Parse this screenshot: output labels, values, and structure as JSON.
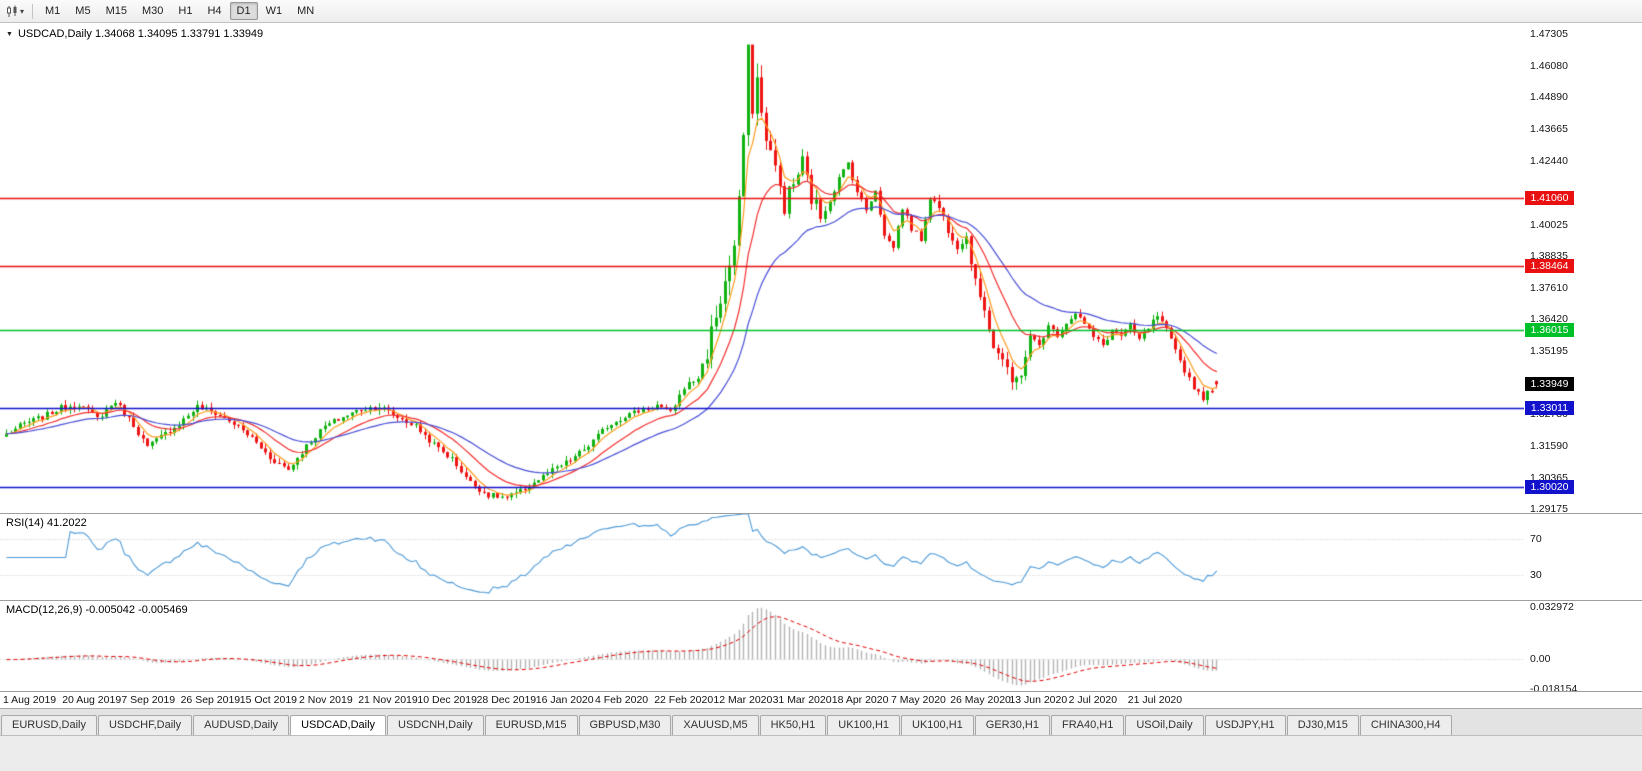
{
  "toolbar": {
    "timeframes": [
      "M1",
      "M5",
      "M15",
      "M30",
      "H1",
      "H4",
      "D1",
      "W1",
      "MN"
    ],
    "active_timeframe": "D1"
  },
  "chart": {
    "title": "USDCAD,Daily 1.34068 1.34095 1.33791 1.33949",
    "symbol": "USDCAD",
    "period": "Daily",
    "open": "1.34068",
    "high": "1.34095",
    "low": "1.33791",
    "close": "1.33949"
  },
  "price_scale": {
    "labels": [
      "1.47305",
      "1.46080",
      "1.44890",
      "1.43665",
      "1.42440",
      "1.40025",
      "1.38835",
      "1.37610",
      "1.36420",
      "1.35195",
      "1.32780",
      "1.31590",
      "1.30365",
      "1.29175"
    ],
    "badges": [
      {
        "text": "1.41060",
        "price": 1.4106,
        "color": "#e81010"
      },
      {
        "text": "1.38464",
        "price": 1.38464,
        "color": "#e81010"
      },
      {
        "text": "1.36015",
        "price": 1.36015,
        "color": "#00c02a"
      },
      {
        "text": "1.33949",
        "price": 1.33949,
        "color": "#000000"
      },
      {
        "text": "1.33011",
        "price": 1.33011,
        "color": "#1212cc"
      },
      {
        "text": "1.30020",
        "price": 1.3002,
        "color": "#1212cc"
      }
    ]
  },
  "indicators": {
    "rsi": {
      "label": "RSI(14) 41.2022",
      "period": 14,
      "value": 41.2022,
      "levels": [
        {
          "text": "70",
          "value": 70
        },
        {
          "text": "30",
          "value": 30
        }
      ]
    },
    "macd": {
      "label": "MACD(12,26,9) -0.005042 -0.005469",
      "fast": 12,
      "slow": 26,
      "signal": 9,
      "value": -0.005042,
      "signal_value": -0.005469,
      "scale_labels": [
        {
          "text": "0.032972",
          "value": 0.032972
        },
        {
          "text": "0.00",
          "value": 0
        },
        {
          "text": "-0.018154",
          "value": -0.018154
        }
      ]
    }
  },
  "time_axis": {
    "labels": [
      "1 Aug 2019",
      "20 Aug 2019",
      "7 Sep 2019",
      "26 Sep 2019",
      "15 Oct 2019",
      "2 Nov 2019",
      "21 Nov 2019",
      "10 Dec 2019",
      "28 Dec 2019",
      "16 Jan 2020",
      "4 Feb 2020",
      "22 Feb 2020",
      "12 Mar 2020",
      "31 Mar 2020",
      "18 Apr 2020",
      "7 May 2020",
      "26 May 2020",
      "13 Jun 2020",
      "2 Jul 2020",
      "21 Jul 2020"
    ]
  },
  "tabs": {
    "active_index": 3,
    "items": [
      "EURUSD,Daily",
      "USDCHF,Daily",
      "AUDUSD,Daily",
      "USDCAD,Daily",
      "USDCNH,Daily",
      "EURUSD,M15",
      "GBPUSD,M30",
      "XAUUSD,M5",
      "HK50,H1",
      "UK100,H1",
      "UK100,H1",
      "GER30,H1",
      "FRA40,H1",
      "USOil,Daily",
      "USDJPY,H1",
      "DJ30,M15",
      "CHINA300,H4"
    ]
  },
  "chart_data": {
    "type": "candlestick",
    "symbol": "USDCAD",
    "timeframe": "Daily",
    "ylim": [
      1.2902,
      1.4772
    ],
    "num_candles": 267,
    "last_candle": {
      "open": 1.34068,
      "high": 1.34095,
      "low": 1.33791,
      "close": 1.33949
    },
    "candle_colors": {
      "up": "#12b212",
      "down": "#ee1515"
    },
    "moving_averages": [
      {
        "period": 5,
        "color": "#ff9c1e"
      },
      {
        "period": 14,
        "color": "#f43030"
      },
      {
        "period": 30,
        "color": "#4a50d8"
      }
    ],
    "h_lines": [
      {
        "price": 1.4106,
        "color": "#e81010"
      },
      {
        "price": 1.38464,
        "color": "#e81010"
      },
      {
        "price": 1.36015,
        "color": "#00c02a"
      },
      {
        "price": 1.33011,
        "color": "#1212cc"
      },
      {
        "price": 1.3002,
        "color": "#1212cc"
      }
    ],
    "rsi_range": [
      2,
      98
    ],
    "macd_range": [
      -0.0195,
      0.0355
    ],
    "price_path_anchors": [
      [
        0,
        1.3205
      ],
      [
        4,
        1.3245
      ],
      [
        8,
        1.327
      ],
      [
        12,
        1.3305
      ],
      [
        16,
        1.332
      ],
      [
        20,
        1.3265
      ],
      [
        24,
        1.333
      ],
      [
        28,
        1.324
      ],
      [
        31,
        1.3155
      ],
      [
        34,
        1.3195
      ],
      [
        38,
        1.3245
      ],
      [
        42,
        1.331
      ],
      [
        46,
        1.3285
      ],
      [
        50,
        1.3245
      ],
      [
        54,
        1.319
      ],
      [
        58,
        1.3115
      ],
      [
        62,
        1.307
      ],
      [
        66,
        1.316
      ],
      [
        70,
        1.3235
      ],
      [
        74,
        1.327
      ],
      [
        78,
        1.33
      ],
      [
        82,
        1.331
      ],
      [
        86,
        1.327
      ],
      [
        90,
        1.3235
      ],
      [
        94,
        1.3165
      ],
      [
        98,
        1.311
      ],
      [
        102,
        1.302
      ],
      [
        106,
        1.2972
      ],
      [
        110,
        1.2962
      ],
      [
        113,
        1.2985
      ],
      [
        116,
        1.302
      ],
      [
        120,
        1.3065
      ],
      [
        124,
        1.3105
      ],
      [
        128,
        1.316
      ],
      [
        132,
        1.3235
      ],
      [
        136,
        1.3275
      ],
      [
        140,
        1.33
      ],
      [
        143,
        1.3315
      ],
      [
        146,
        1.3285
      ],
      [
        149,
        1.3385
      ],
      [
        152,
        1.342
      ],
      [
        154,
        1.352
      ],
      [
        156,
        1.366
      ],
      [
        158,
        1.378
      ],
      [
        160,
        1.392
      ],
      [
        161,
        1.408
      ],
      [
        162,
        1.435
      ],
      [
        163,
        1.4655
      ],
      [
        164,
        1.446
      ],
      [
        165,
        1.456
      ],
      [
        166,
        1.442
      ],
      [
        167,
        1.435
      ],
      [
        169,
        1.421
      ],
      [
        171,
        1.408
      ],
      [
        173,
        1.416
      ],
      [
        175,
        1.424
      ],
      [
        177,
        1.411
      ],
      [
        179,
        1.403
      ],
      [
        181,
        1.41
      ],
      [
        183,
        1.418
      ],
      [
        185,
        1.424
      ],
      [
        187,
        1.413
      ],
      [
        189,
        1.406
      ],
      [
        191,
        1.414
      ],
      [
        193,
        1.396
      ],
      [
        195,
        1.392
      ],
      [
        197,
        1.407
      ],
      [
        199,
        1.399
      ],
      [
        201,
        1.395
      ],
      [
        203,
        1.411
      ],
      [
        205,
        1.407
      ],
      [
        207,
        1.399
      ],
      [
        209,
        1.393
      ],
      [
        211,
        1.396
      ],
      [
        213,
        1.378
      ],
      [
        215,
        1.369
      ],
      [
        217,
        1.354
      ],
      [
        219,
        1.349
      ],
      [
        221,
        1.3395
      ],
      [
        223,
        1.344
      ],
      [
        225,
        1.3575
      ],
      [
        227,
        1.3545
      ],
      [
        229,
        1.3615
      ],
      [
        231,
        1.3585
      ],
      [
        233,
        1.363
      ],
      [
        235,
        1.367
      ],
      [
        237,
        1.3625
      ],
      [
        239,
        1.3575
      ],
      [
        241,
        1.3545
      ],
      [
        243,
        1.36
      ],
      [
        245,
        1.358
      ],
      [
        247,
        1.3615
      ],
      [
        249,
        1.3565
      ],
      [
        251,
        1.361
      ],
      [
        253,
        1.3655
      ],
      [
        255,
        1.36
      ],
      [
        257,
        1.352
      ],
      [
        259,
        1.345
      ],
      [
        261,
        1.3385
      ],
      [
        263,
        1.3345
      ],
      [
        265,
        1.3375
      ],
      [
        266,
        1.33949
      ]
    ]
  }
}
